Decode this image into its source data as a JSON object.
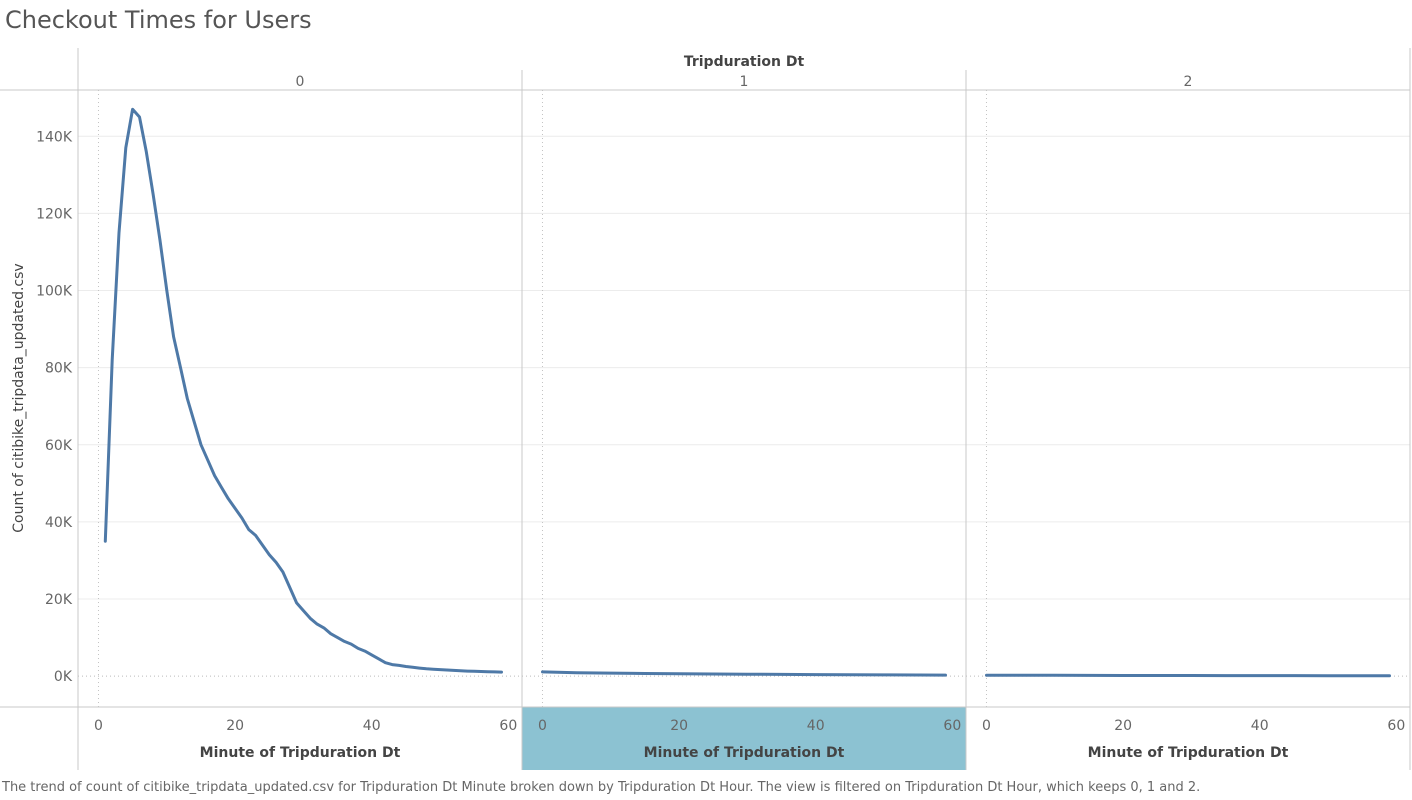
{
  "title": "Checkout Times for Users",
  "footer_caption": "The trend of count of citibike_tripdata_updated.csv for Tripduration Dt Minute broken down by Tripduration Dt Hour. The view is filtered on Tripduration Dt Hour, which keeps 0, 1 and 2.",
  "colors": {
    "line": "#4e79a7",
    "highlight_band": "#8cc2d2",
    "grid": "#ececec",
    "divider": "#c8c8c8",
    "axis_text": "#666666"
  },
  "chart_data": {
    "type": "line",
    "title": "Checkout Times for Users",
    "facet_header": "Tripduration Dt",
    "xlabel": "Minute of Tripduration Dt",
    "ylabel": "Count of citibike_tripdata_updated.csv",
    "xlim": [
      -3,
      62
    ],
    "ylim": [
      -8000,
      152000
    ],
    "x_ticks": [
      0,
      20,
      40,
      60
    ],
    "x_tick_labels": [
      "0",
      "20",
      "40",
      "60"
    ],
    "y_ticks": [
      0,
      20000,
      40000,
      60000,
      80000,
      100000,
      120000,
      140000
    ],
    "y_tick_labels": [
      "0K",
      "20K",
      "40K",
      "60K",
      "80K",
      "100K",
      "120K",
      "140K"
    ],
    "highlighted_panel": 1,
    "panels": [
      {
        "label": "0",
        "x": [
          1,
          2,
          3,
          4,
          5,
          6,
          7,
          8,
          9,
          10,
          11,
          12,
          13,
          14,
          15,
          16,
          17,
          18,
          19,
          20,
          21,
          22,
          23,
          24,
          25,
          26,
          27,
          28,
          29,
          30,
          31,
          32,
          33,
          34,
          35,
          36,
          37,
          38,
          39,
          40,
          41,
          42,
          43,
          44,
          45,
          46,
          47,
          48,
          49,
          50,
          51,
          52,
          53,
          54,
          55,
          56,
          57,
          58,
          59
        ],
        "y": [
          35000,
          82000,
          115000,
          137000,
          147000,
          145000,
          136000,
          125000,
          113000,
          100000,
          88000,
          80000,
          72000,
          66000,
          60000,
          56000,
          52000,
          49000,
          46000,
          43500,
          41000,
          38000,
          36500,
          34000,
          31500,
          29500,
          27000,
          23000,
          19000,
          17000,
          15000,
          13500,
          12500,
          11000,
          10000,
          9000,
          8300,
          7200,
          6500,
          5500,
          4500,
          3500,
          3000,
          2800,
          2500,
          2300,
          2100,
          1900,
          1800,
          1700,
          1600,
          1500,
          1400,
          1300,
          1250,
          1200,
          1150,
          1100,
          1050
        ]
      },
      {
        "label": "1",
        "x": [
          0,
          5,
          10,
          15,
          20,
          25,
          30,
          35,
          40,
          45,
          50,
          55,
          59
        ],
        "y": [
          1100,
          900,
          800,
          700,
          620,
          560,
          500,
          450,
          400,
          360,
          320,
          290,
          270
        ]
      },
      {
        "label": "2",
        "x": [
          0,
          5,
          10,
          15,
          20,
          25,
          30,
          35,
          40,
          45,
          50,
          55,
          59
        ],
        "y": [
          250,
          230,
          210,
          195,
          180,
          170,
          160,
          150,
          140,
          130,
          120,
          110,
          100
        ]
      }
    ]
  }
}
